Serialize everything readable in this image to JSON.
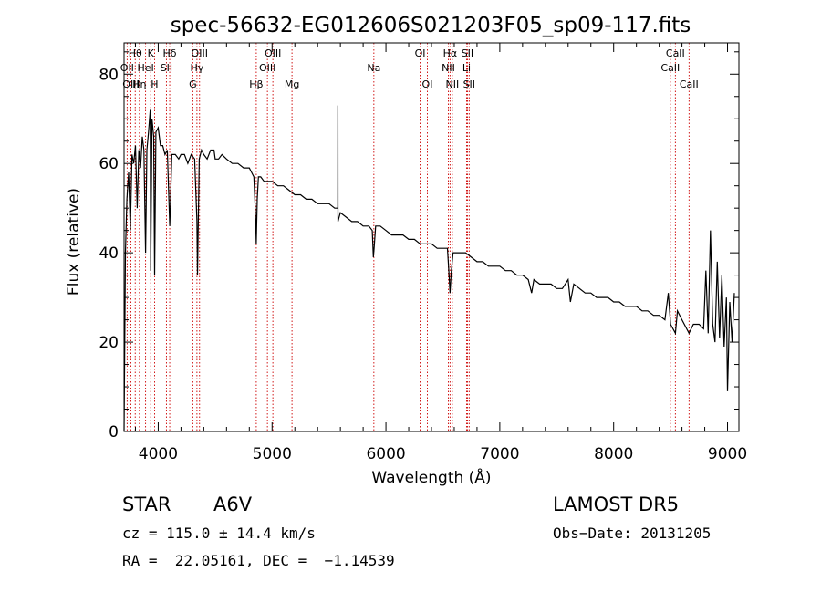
{
  "chart_data": {
    "type": "line",
    "title": "spec-56632-EG012606S021203F05_sp09-117.fits",
    "xlabel": "Wavelength (Å)",
    "ylabel": "Flux (relative)",
    "xlim": [
      3700,
      9100
    ],
    "ylim": [
      0,
      87
    ],
    "xticks": [
      4000,
      5000,
      6000,
      7000,
      8000,
      9000
    ],
    "yticks": [
      0,
      20,
      40,
      60,
      80
    ],
    "grid": false,
    "series": [
      {
        "points": [
          [
            3700,
            0
          ],
          [
            3712,
            40
          ],
          [
            3725,
            52
          ],
          [
            3740,
            58
          ],
          [
            3755,
            45
          ],
          [
            3770,
            62
          ],
          [
            3785,
            60
          ],
          [
            3800,
            64
          ],
          [
            3815,
            50
          ],
          [
            3830,
            63
          ],
          [
            3845,
            59
          ],
          [
            3860,
            66
          ],
          [
            3875,
            63
          ],
          [
            3889,
            40
          ],
          [
            3900,
            63
          ],
          [
            3915,
            67
          ],
          [
            3930,
            72
          ],
          [
            3934,
            36
          ],
          [
            3945,
            70
          ],
          [
            3960,
            66
          ],
          [
            3968,
            35
          ],
          [
            3980,
            67
          ],
          [
            4000,
            68
          ],
          [
            4020,
            64
          ],
          [
            4040,
            64
          ],
          [
            4060,
            62
          ],
          [
            4080,
            63
          ],
          [
            4101,
            46
          ],
          [
            4120,
            62
          ],
          [
            4150,
            62
          ],
          [
            4180,
            61
          ],
          [
            4200,
            62
          ],
          [
            4230,
            62
          ],
          [
            4260,
            60
          ],
          [
            4290,
            62
          ],
          [
            4320,
            61
          ],
          [
            4340,
            47
          ],
          [
            4345,
            35
          ],
          [
            4360,
            61
          ],
          [
            4380,
            63
          ],
          [
            4400,
            62
          ],
          [
            4430,
            61
          ],
          [
            4460,
            63
          ],
          [
            4490,
            63
          ],
          [
            4500,
            61
          ],
          [
            4530,
            61
          ],
          [
            4560,
            62
          ],
          [
            4600,
            61
          ],
          [
            4650,
            60
          ],
          [
            4700,
            60
          ],
          [
            4750,
            59
          ],
          [
            4800,
            59
          ],
          [
            4840,
            57
          ],
          [
            4855,
            48
          ],
          [
            4861,
            42
          ],
          [
            4870,
            52
          ],
          [
            4880,
            57
          ],
          [
            4900,
            57
          ],
          [
            4930,
            56
          ],
          [
            4970,
            56
          ],
          [
            5000,
            56
          ],
          [
            5050,
            55
          ],
          [
            5100,
            55
          ],
          [
            5150,
            54
          ],
          [
            5200,
            53
          ],
          [
            5250,
            53
          ],
          [
            5300,
            52
          ],
          [
            5350,
            52
          ],
          [
            5400,
            51
          ],
          [
            5450,
            51
          ],
          [
            5500,
            51
          ],
          [
            5550,
            50
          ],
          [
            5577,
            50
          ],
          [
            5578,
            73
          ],
          [
            5579,
            47
          ],
          [
            5600,
            49
          ],
          [
            5650,
            48
          ],
          [
            5700,
            47
          ],
          [
            5750,
            47
          ],
          [
            5800,
            46
          ],
          [
            5850,
            46
          ],
          [
            5880,
            45
          ],
          [
            5890,
            39
          ],
          [
            5896,
            41
          ],
          [
            5910,
            46
          ],
          [
            5950,
            46
          ],
          [
            6000,
            45
          ],
          [
            6050,
            44
          ],
          [
            6100,
            44
          ],
          [
            6150,
            44
          ],
          [
            6200,
            43
          ],
          [
            6250,
            43
          ],
          [
            6300,
            42
          ],
          [
            6350,
            42
          ],
          [
            6400,
            42
          ],
          [
            6450,
            41
          ],
          [
            6500,
            41
          ],
          [
            6540,
            41
          ],
          [
            6555,
            35
          ],
          [
            6563,
            31
          ],
          [
            6575,
            36
          ],
          [
            6590,
            40
          ],
          [
            6650,
            40
          ],
          [
            6700,
            40
          ],
          [
            6750,
            39
          ],
          [
            6800,
            38
          ],
          [
            6850,
            38
          ],
          [
            6900,
            37
          ],
          [
            6950,
            37
          ],
          [
            7000,
            37
          ],
          [
            7050,
            36
          ],
          [
            7100,
            36
          ],
          [
            7150,
            35
          ],
          [
            7200,
            35
          ],
          [
            7250,
            34
          ],
          [
            7280,
            31
          ],
          [
            7300,
            34
          ],
          [
            7350,
            33
          ],
          [
            7400,
            33
          ],
          [
            7450,
            33
          ],
          [
            7500,
            32
          ],
          [
            7550,
            32
          ],
          [
            7600,
            34
          ],
          [
            7620,
            29
          ],
          [
            7650,
            33
          ],
          [
            7700,
            32
          ],
          [
            7750,
            31
          ],
          [
            7800,
            31
          ],
          [
            7850,
            30
          ],
          [
            7900,
            30
          ],
          [
            7950,
            30
          ],
          [
            8000,
            29
          ],
          [
            8050,
            29
          ],
          [
            8100,
            28
          ],
          [
            8150,
            28
          ],
          [
            8200,
            28
          ],
          [
            8250,
            27
          ],
          [
            8300,
            27
          ],
          [
            8350,
            26
          ],
          [
            8400,
            26
          ],
          [
            8450,
            25
          ],
          [
            8480,
            31
          ],
          [
            8500,
            24
          ],
          [
            8542,
            22
          ],
          [
            8560,
            27
          ],
          [
            8600,
            25
          ],
          [
            8662,
            22
          ],
          [
            8700,
            24
          ],
          [
            8750,
            24
          ],
          [
            8790,
            23
          ],
          [
            8810,
            36
          ],
          [
            8830,
            22
          ],
          [
            8850,
            45
          ],
          [
            8870,
            24
          ],
          [
            8890,
            20
          ],
          [
            8910,
            38
          ],
          [
            8930,
            21
          ],
          [
            8950,
            35
          ],
          [
            8970,
            19
          ],
          [
            8990,
            30
          ],
          [
            9000,
            9
          ],
          [
            9020,
            29
          ],
          [
            9040,
            20
          ],
          [
            9060,
            31
          ]
        ]
      }
    ],
    "lines": [
      {
        "label": "Hθ",
        "x": 3798,
        "row": 1
      },
      {
        "label": "OII",
        "x": 3727,
        "row": 2
      },
      {
        "label": "OIII",
        "x": 3760,
        "row": 3
      },
      {
        "label": "Hη",
        "x": 3835,
        "row": 3
      },
      {
        "label": "HeI",
        "x": 3889,
        "row": 2
      },
      {
        "label": "K",
        "x": 3934,
        "row": 1
      },
      {
        "label": "H",
        "x": 3968,
        "row": 3
      },
      {
        "label": "Hδ",
        "x": 4101,
        "row": 1
      },
      {
        "label": "SII",
        "x": 4072,
        "row": 2
      },
      {
        "label": "OIII",
        "x": 4363,
        "row": 1
      },
      {
        "label": "Hγ",
        "x": 4340,
        "row": 2
      },
      {
        "label": "G",
        "x": 4304,
        "row": 3
      },
      {
        "label": "OIII",
        "x": 5007,
        "row": 1
      },
      {
        "label": "OIII",
        "x": 4959,
        "row": 2
      },
      {
        "label": "Hβ",
        "x": 4861,
        "row": 3
      },
      {
        "label": "Mg",
        "x": 5175,
        "row": 3
      },
      {
        "label": "Na",
        "x": 5894,
        "row": 2
      },
      {
        "label": "OI",
        "x": 6300,
        "row": 1
      },
      {
        "label": "OI",
        "x": 6364,
        "row": 3
      },
      {
        "label": "Hα",
        "x": 6563,
        "row": 1
      },
      {
        "label": "NII",
        "x": 6548,
        "row": 2
      },
      {
        "label": "NII",
        "x": 6583,
        "row": 3
      },
      {
        "label": "SII",
        "x": 6716,
        "row": 1
      },
      {
        "label": "Li",
        "x": 6708,
        "row": 2
      },
      {
        "label": "SII",
        "x": 6731,
        "row": 3
      },
      {
        "label": "CaII",
        "x": 8542,
        "row": 1
      },
      {
        "label": "CaII",
        "x": 8498,
        "row": 2
      },
      {
        "label": "CaII",
        "x": 8662,
        "row": 3
      }
    ]
  },
  "info": {
    "class": "STAR",
    "subclass": "A6V",
    "survey": "LAMOST DR5",
    "cz": "cz = 115.0 ± 14.4 km/s",
    "obs_date": "Obs−Date: 20131205",
    "coords": "RA =  22.05161, DEC =  −1.14539"
  },
  "colors": {
    "spectrum": "#000000",
    "line_markers": "#cc0000",
    "axes": "#000000"
  }
}
